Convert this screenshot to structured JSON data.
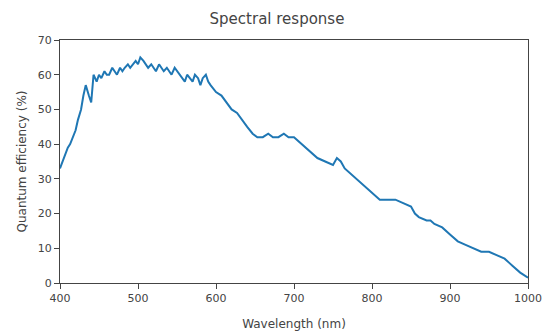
{
  "chart_data": {
    "type": "line",
    "title": "Spectral response",
    "xlabel": "Wavelength (nm)",
    "ylabel": "Quantum efficiency (%)",
    "x": [
      400,
      403,
      407,
      410,
      413,
      417,
      420,
      423,
      427,
      430,
      433,
      437,
      440,
      443,
      447,
      450,
      453,
      457,
      460,
      463,
      467,
      470,
      473,
      477,
      480,
      483,
      487,
      490,
      493,
      497,
      500,
      503,
      507,
      510,
      513,
      517,
      520,
      523,
      527,
      530,
      533,
      537,
      540,
      543,
      547,
      550,
      553,
      557,
      560,
      563,
      567,
      570,
      573,
      577,
      580,
      583,
      587,
      590,
      593,
      597,
      600,
      607,
      613,
      620,
      627,
      633,
      640,
      647,
      653,
      660,
      667,
      673,
      680,
      687,
      693,
      700,
      710,
      720,
      730,
      740,
      750,
      755,
      760,
      765,
      770,
      775,
      780,
      785,
      790,
      795,
      800,
      805,
      810,
      820,
      830,
      840,
      850,
      855,
      860,
      870,
      875,
      880,
      890,
      900,
      910,
      920,
      930,
      940,
      950,
      960,
      970,
      980,
      990,
      1000
    ],
    "values": [
      33,
      35,
      37,
      39,
      40,
      42,
      44,
      47,
      50,
      54,
      57,
      54,
      52,
      60,
      58,
      60,
      59,
      61,
      60,
      60,
      62,
      61,
      60,
      62,
      61,
      62,
      63,
      62,
      63,
      64,
      63,
      65,
      64,
      63,
      62,
      63,
      62,
      61,
      63,
      62,
      61,
      62,
      61,
      60,
      62,
      61,
      60,
      59,
      58,
      60,
      59,
      58,
      60,
      59,
      57,
      59,
      60,
      58,
      57,
      56,
      55,
      54,
      52,
      50,
      49,
      47,
      45,
      43,
      42,
      42,
      43,
      42,
      42,
      43,
      42,
      42,
      40,
      38,
      36,
      35,
      34,
      36,
      35,
      33,
      32,
      31,
      30,
      29,
      28,
      27,
      26,
      25,
      24,
      24,
      24,
      23,
      22,
      20,
      19,
      18,
      18,
      17,
      16,
      14,
      12,
      11,
      10,
      9,
      9,
      8,
      7,
      5,
      3,
      1.5
    ],
    "xlim": [
      400,
      1000
    ],
    "ylim": [
      0,
      70
    ],
    "xticks": [
      400,
      500,
      600,
      700,
      800,
      900,
      1000
    ],
    "yticks": [
      0,
      10,
      20,
      30,
      40,
      50,
      60,
      70
    ],
    "grid": false
  }
}
